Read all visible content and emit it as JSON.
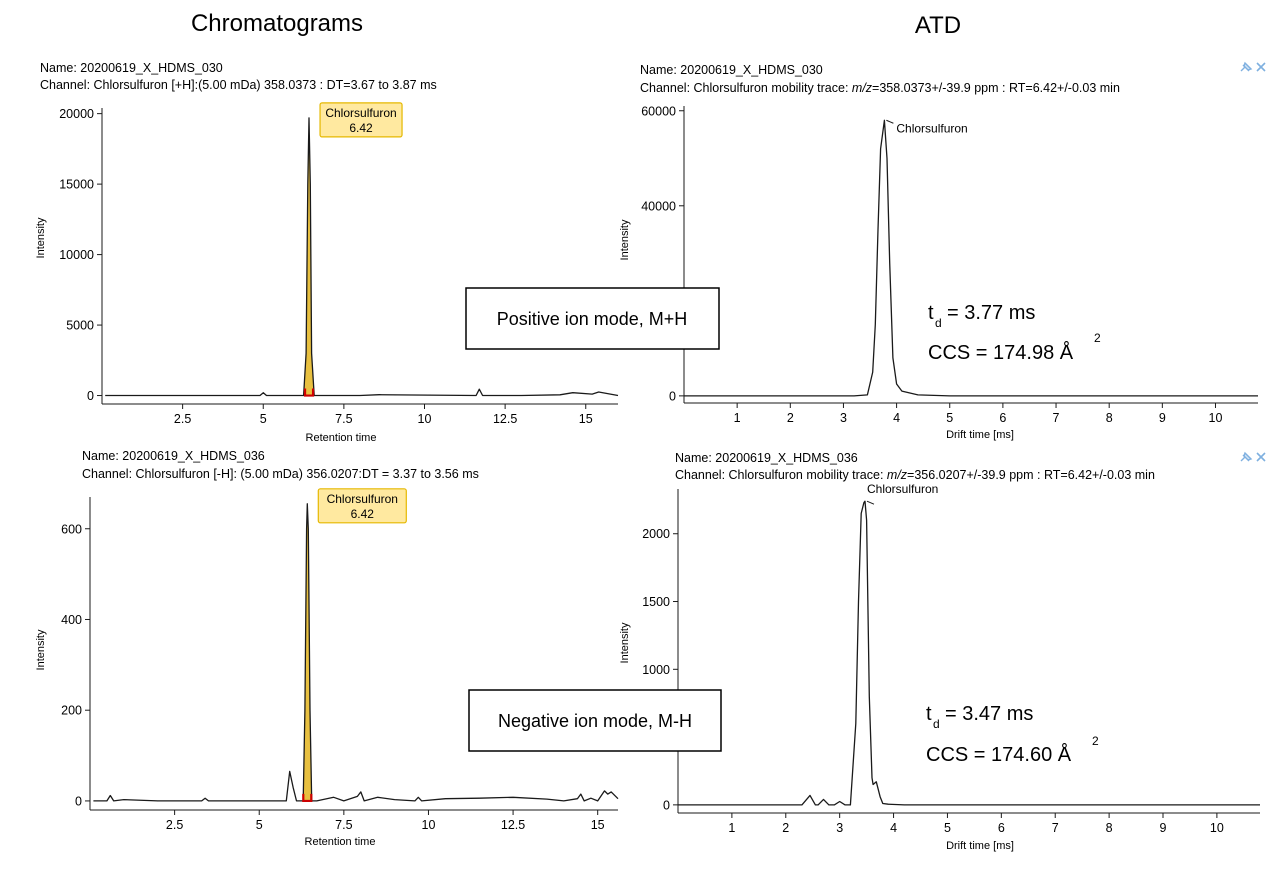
{
  "headings": {
    "left": "Chromatograms",
    "right": "ATD"
  },
  "annotations": {
    "positive": {
      "mode": "Positive ion mode, M+H",
      "td_value": "= 3.77 ms",
      "ccs": "CCS = 174.98 Å",
      "sup": "2"
    },
    "negative": {
      "mode": "Negative ion mode, M-H",
      "td_value": "= 3.47 ms",
      "ccs": "CCS = 174.60 Å",
      "sup": "2"
    },
    "t_letter": "t",
    "t_sub": "d"
  },
  "colors": {
    "trace": "#1a1a1a",
    "label_box_fill": "#ffe9a0",
    "label_box_border": "#e5b800",
    "peak_fill": "#e8c040",
    "peak_marker": "#cc0000",
    "toolbar_icon": "#7fb0e0"
  },
  "toolbar": {
    "pin_icon": "pin-icon",
    "close_icon": "close-icon"
  },
  "chart_data": [
    {
      "type": "line",
      "name": "Name: 20200619_X_HDMS_030",
      "channel": "Channel: Chlorsulfuron [+H]:(5.00 mDa) 358.0373 : DT=3.67 to 3.87 ms",
      "xlabel": "Retention time",
      "ylabel": "Intensity",
      "xlim": [
        0,
        16
      ],
      "ylim": [
        -600,
        20400
      ],
      "x_ticks": [
        2.5,
        5,
        7.5,
        10,
        12.5,
        15
      ],
      "x_tick_labels": [
        "2.5",
        "5",
        "7.5",
        "10",
        "12.5",
        "15"
      ],
      "y_ticks": [
        0,
        5000,
        10000,
        15000,
        20000
      ],
      "y_tick_labels": [
        "0",
        "5000",
        "10000",
        "15000",
        "20000"
      ],
      "peak_label": {
        "name": "Chlorsulfuron",
        "value": "6.42",
        "x": 6.42,
        "y": 19700
      },
      "series": [
        {
          "x": [
            0.1,
            2.0,
            4.9,
            5.0,
            5.1,
            6.25,
            6.33,
            6.38,
            6.42,
            6.46,
            6.5,
            6.58,
            8.0,
            8.6,
            11.6,
            11.7,
            11.8,
            13.0,
            14.2,
            14.6,
            15.2,
            15.4,
            16.0
          ],
          "y": [
            0,
            0,
            0,
            200,
            0,
            0,
            3000,
            15000,
            19700,
            15000,
            3000,
            0,
            0,
            60,
            0,
            450,
            0,
            0,
            50,
            200,
            100,
            250,
            0
          ]
        }
      ]
    },
    {
      "type": "line",
      "name": "Name: 20200619_X_HDMS_030",
      "channel_prefix": "Channel: Chlorsulfuron mobility trace: ",
      "channel_mz": "m/z",
      "channel_rest": "=358.0373+/-39.9 ppm : RT=6.42+/-0.03 min",
      "xlabel": "Drift time [ms]",
      "ylabel": "Intensity",
      "xlim": [
        0,
        10.8
      ],
      "ylim": [
        -1500,
        61000
      ],
      "x_ticks": [
        1,
        2,
        3,
        4,
        5,
        6,
        7,
        8,
        9,
        10
      ],
      "x_tick_labels": [
        "1",
        "2",
        "3",
        "4",
        "5",
        "6",
        "7",
        "8",
        "9",
        "10"
      ],
      "y_ticks": [
        0,
        20000,
        40000,
        60000
      ],
      "y_tick_labels": [
        "0",
        "",
        "40000",
        "60000"
      ],
      "peak_label": {
        "name": "Chlorsulfuron",
        "x": 3.77,
        "y": 58000
      },
      "series": [
        {
          "x": [
            0,
            3.2,
            3.45,
            3.55,
            3.6,
            3.65,
            3.7,
            3.77,
            3.82,
            3.87,
            3.93,
            4.0,
            4.1,
            4.4,
            5.0,
            10.8
          ],
          "y": [
            0,
            0,
            200,
            5000,
            15000,
            35000,
            52000,
            58000,
            50000,
            28000,
            8000,
            2500,
            1000,
            200,
            0,
            0
          ]
        }
      ]
    },
    {
      "type": "line",
      "name": "Name: 20200619_X_HDMS_036",
      "channel": "Channel: Chlorsulfuron [-H]: (5.00 mDa) 356.0207:DT = 3.37 to 3.56 ms",
      "xlabel": "Retention time",
      "ylabel": "Intensity",
      "xlim": [
        0,
        15.6
      ],
      "ylim": [
        -20,
        670
      ],
      "x_ticks": [
        2.5,
        5,
        7.5,
        10,
        12.5,
        15
      ],
      "x_tick_labels": [
        "2.5",
        "5",
        "7.5",
        "10",
        "12.5",
        "15"
      ],
      "y_ticks": [
        0,
        200,
        400,
        600
      ],
      "y_tick_labels": [
        "0",
        "200",
        "400",
        "600"
      ],
      "peak_label": {
        "name": "Chlorsulfuron",
        "value": "6.42",
        "x": 6.42,
        "y": 655
      },
      "series": [
        {
          "x": [
            0.1,
            0.5,
            0.6,
            0.7,
            1.0,
            2.0,
            3.3,
            3.4,
            3.5,
            5.5,
            5.8,
            5.9,
            6.0,
            6.1,
            6.3,
            6.35,
            6.4,
            6.42,
            6.45,
            6.5,
            6.55,
            6.7,
            7.2,
            7.5,
            7.9,
            8.0,
            8.1,
            8.5,
            9.0,
            9.6,
            9.7,
            9.8,
            10.5,
            11.5,
            12.5,
            13.5,
            14.0,
            14.4,
            14.5,
            14.6,
            14.8,
            15.0,
            15.2,
            15.3,
            15.4,
            15.6
          ],
          "y": [
            0,
            0,
            12,
            0,
            3,
            0,
            0,
            6,
            0,
            0,
            0,
            65,
            30,
            0,
            0,
            200,
            600,
            655,
            600,
            200,
            0,
            0,
            8,
            0,
            10,
            20,
            0,
            8,
            3,
            0,
            8,
            0,
            5,
            6,
            8,
            4,
            0,
            5,
            15,
            0,
            6,
            0,
            22,
            15,
            20,
            5
          ]
        }
      ]
    },
    {
      "type": "line",
      "name": "Name: 20200619_X_HDMS_036",
      "channel_prefix": "Channel: Chlorsulfuron mobility trace: ",
      "channel_mz": "m/z",
      "channel_rest": "=356.0207+/-39.9 ppm : RT=6.42+/-0.03 min",
      "xlabel": "Drift time [ms]",
      "ylabel": "Intensity",
      "xlim": [
        0,
        10.8
      ],
      "ylim": [
        -60,
        2330
      ],
      "x_ticks": [
        1,
        2,
        3,
        4,
        5,
        6,
        7,
        8,
        9,
        10
      ],
      "x_tick_labels": [
        "1",
        "2",
        "3",
        "4",
        "5",
        "6",
        "7",
        "8",
        "9",
        "10"
      ],
      "y_ticks": [
        0,
        500,
        1000,
        1500,
        2000
      ],
      "y_tick_labels": [
        "0",
        "",
        "1000",
        "1500",
        "2000"
      ],
      "peak_label": {
        "name": "Chlorsulfuron",
        "x": 3.47,
        "y": 2240
      },
      "series": [
        {
          "x": [
            0,
            2.3,
            2.45,
            2.55,
            2.6,
            2.7,
            2.8,
            2.9,
            3.0,
            3.1,
            3.2,
            3.3,
            3.35,
            3.4,
            3.45,
            3.47,
            3.5,
            3.55,
            3.6,
            3.62,
            3.68,
            3.75,
            3.8,
            3.9,
            4.2,
            10.8
          ],
          "y": [
            0,
            0,
            70,
            0,
            0,
            40,
            0,
            0,
            25,
            0,
            0,
            600,
            1500,
            2150,
            2230,
            2240,
            2100,
            800,
            200,
            150,
            170,
            60,
            10,
            5,
            0,
            0
          ]
        }
      ]
    }
  ]
}
